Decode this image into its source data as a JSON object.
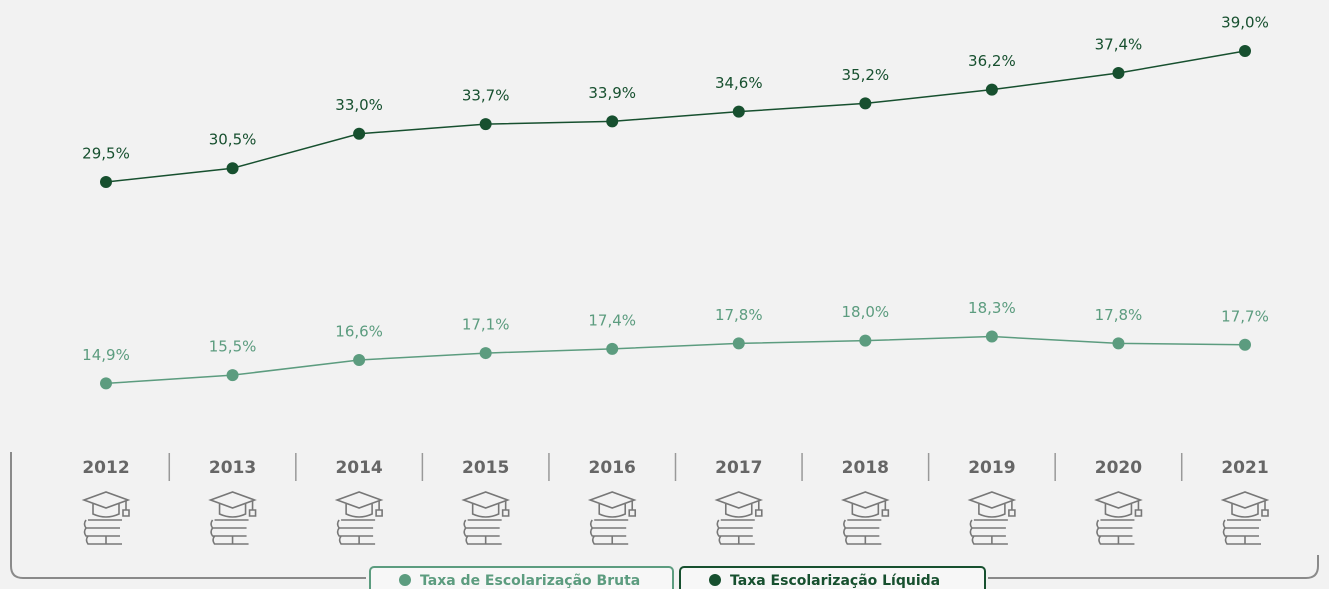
{
  "chart_data": {
    "type": "line",
    "categories": [
      "2012",
      "2013",
      "2014",
      "2015",
      "2016",
      "2017",
      "2018",
      "2019",
      "2020",
      "2021"
    ],
    "series": [
      {
        "name": "Taxa de Escolarização Bruta",
        "color": "#5c9c7f",
        "values": [
          14.9,
          15.5,
          16.6,
          17.1,
          17.4,
          17.8,
          18.0,
          18.3,
          17.8,
          17.7
        ],
        "value_labels": [
          "14,9%",
          "15,5%",
          "16,6%",
          "17,1%",
          "17,4%",
          "17,8%",
          "18,0%",
          "18,3%",
          "17,8%",
          "17,7%"
        ]
      },
      {
        "name": "Taxa Escolarização Líquida",
        "color": "#17502f",
        "values": [
          29.5,
          30.5,
          33.0,
          33.7,
          33.9,
          34.6,
          35.2,
          36.2,
          37.4,
          39.0
        ],
        "value_labels": [
          "29,5%",
          "30,5%",
          "33,0%",
          "33,7%",
          "33,9%",
          "34,6%",
          "35,2%",
          "36,2%",
          "37,4%",
          "39,0%"
        ]
      }
    ],
    "ylim": [
      10,
      42
    ]
  }
}
